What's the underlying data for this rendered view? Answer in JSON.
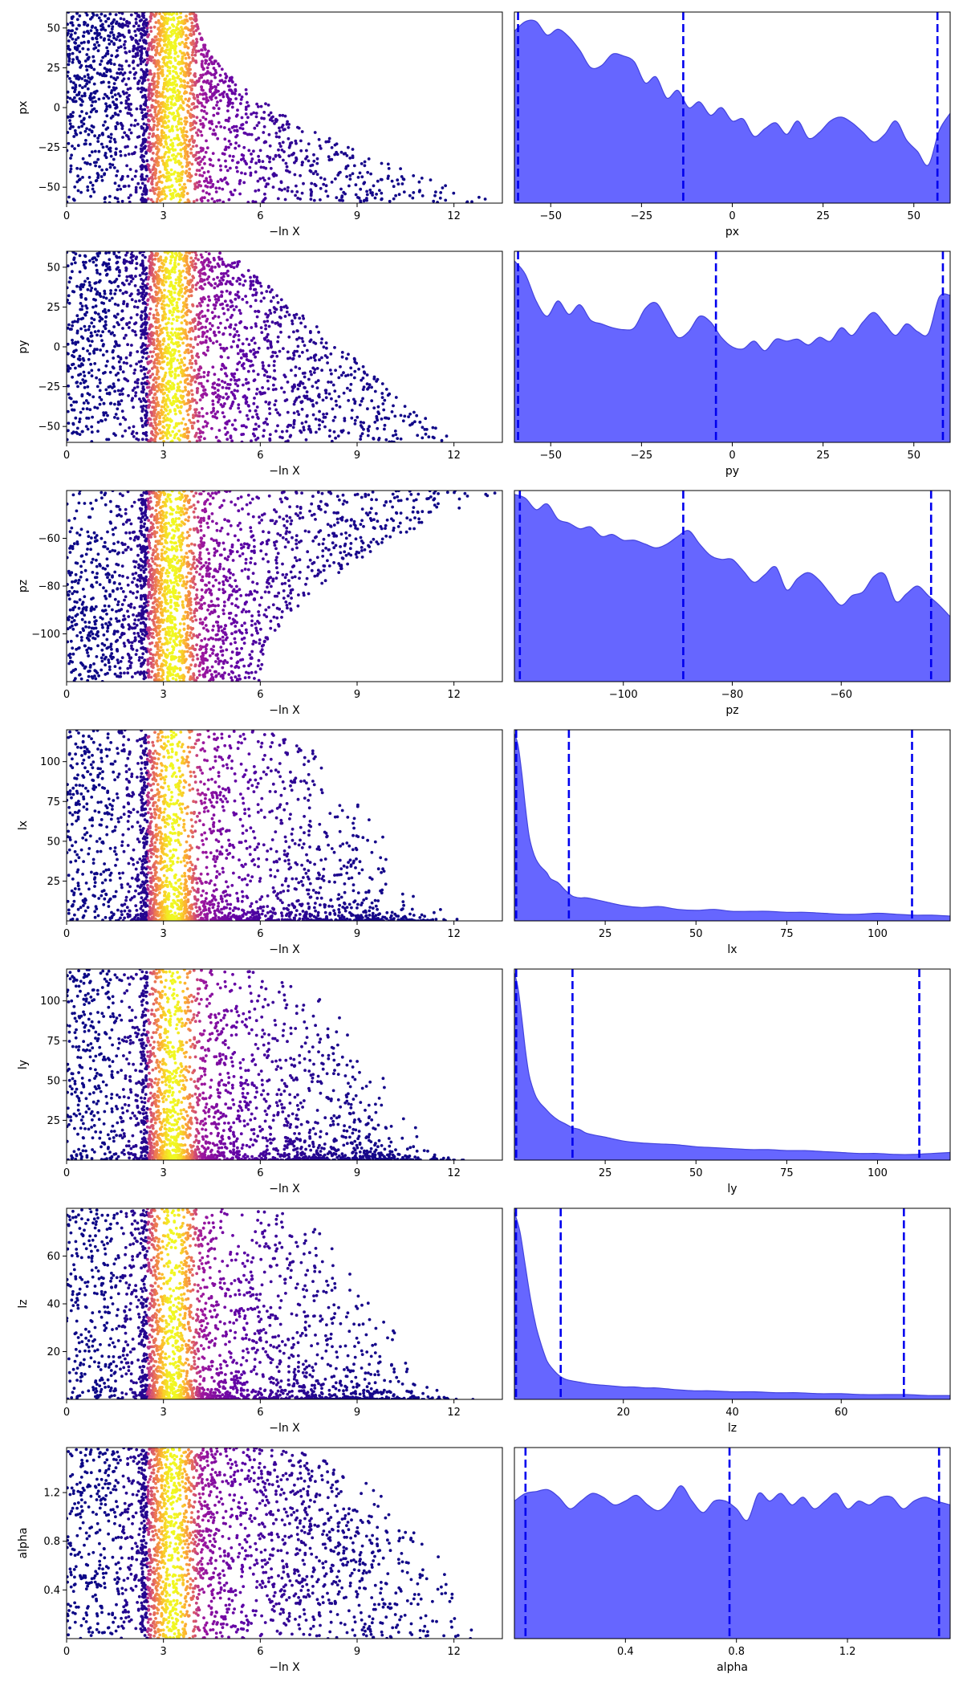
{
  "x_axis_label_left": "−ln X",
  "colors": {
    "kde_fill": "#6666ff",
    "kde_line": "#4444dd",
    "quantile_line": "#0000ee",
    "colormap": [
      "#0d0887",
      "#5c01a6",
      "#9c179e",
      "#cc4778",
      "#ed7953",
      "#fdb42f",
      "#f0f921"
    ]
  },
  "chart_data": [
    {
      "type": "scatter",
      "parameter": "px",
      "ylabel": "px",
      "xlim": [
        0,
        13.5
      ],
      "ylim": [
        -60,
        60
      ],
      "x_ticks": [
        0,
        3,
        6,
        9,
        12
      ],
      "y_ticks": [
        -50,
        -25,
        0,
        25,
        50
      ],
      "grid": false,
      "description_hint": "nested sampling points colored by posterior weight (plasma colormap)"
    },
    {
      "type": "area",
      "parameter": "px",
      "xlabel": "px",
      "xlim": [
        -60,
        60
      ],
      "x_ticks": [
        -50,
        -25,
        0,
        25,
        50
      ],
      "quantile_lines": [
        -59,
        -13.5,
        56.5
      ],
      "kde_x": [
        -60,
        -57,
        -54,
        -51,
        -48,
        -45,
        -42,
        -39,
        -36,
        -33,
        -30,
        -27,
        -24,
        -21,
        -18,
        -15,
        -12,
        -9,
        -6,
        -3,
        0,
        3,
        6,
        9,
        12,
        15,
        18,
        21,
        24,
        27,
        30,
        33,
        36,
        39,
        42,
        45,
        48,
        51,
        54,
        57,
        60
      ],
      "kde_y": [
        0.9,
        0.95,
        0.95,
        0.88,
        0.91,
        0.87,
        0.8,
        0.71,
        0.72,
        0.78,
        0.77,
        0.74,
        0.63,
        0.66,
        0.55,
        0.59,
        0.5,
        0.53,
        0.46,
        0.5,
        0.43,
        0.44,
        0.35,
        0.39,
        0.42,
        0.36,
        0.43,
        0.34,
        0.37,
        0.43,
        0.45,
        0.42,
        0.37,
        0.32,
        0.36,
        0.43,
        0.33,
        0.27,
        0.2,
        0.38,
        0.47
      ]
    },
    {
      "type": "scatter",
      "parameter": "py",
      "ylabel": "py",
      "xlim": [
        0,
        13.5
      ],
      "ylim": [
        -60,
        60
      ],
      "x_ticks": [
        0,
        3,
        6,
        9,
        12
      ],
      "y_ticks": [
        -50,
        -25,
        0,
        25,
        50
      ],
      "grid": false
    },
    {
      "type": "area",
      "parameter": "py",
      "xlabel": "py",
      "xlim": [
        -60,
        60
      ],
      "x_ticks": [
        -50,
        -25,
        0,
        25,
        50
      ],
      "quantile_lines": [
        -59,
        -4.5,
        58
      ],
      "kde_x": [
        -60,
        -57,
        -54,
        -51,
        -48,
        -45,
        -42,
        -39,
        -36,
        -33,
        -30,
        -27,
        -24,
        -21,
        -18,
        -15,
        -12,
        -9,
        -6,
        -3,
        0,
        3,
        6,
        9,
        12,
        15,
        18,
        21,
        24,
        27,
        30,
        33,
        36,
        39,
        42,
        45,
        48,
        51,
        54,
        57,
        60
      ],
      "kde_y": [
        0.95,
        0.88,
        0.74,
        0.66,
        0.74,
        0.67,
        0.72,
        0.64,
        0.62,
        0.6,
        0.59,
        0.6,
        0.7,
        0.73,
        0.64,
        0.55,
        0.58,
        0.66,
        0.63,
        0.55,
        0.5,
        0.49,
        0.53,
        0.48,
        0.54,
        0.53,
        0.54,
        0.51,
        0.55,
        0.53,
        0.6,
        0.56,
        0.63,
        0.68,
        0.62,
        0.56,
        0.62,
        0.58,
        0.57,
        0.76,
        0.77
      ]
    },
    {
      "type": "scatter",
      "parameter": "pz",
      "ylabel": "pz",
      "xlim": [
        0,
        13.5
      ],
      "ylim": [
        -120,
        -40
      ],
      "x_ticks": [
        0,
        3,
        6,
        9,
        12
      ],
      "y_ticks": [
        -100,
        -80,
        -60
      ],
      "grid": false
    },
    {
      "type": "area",
      "parameter": "pz",
      "xlabel": "pz",
      "xlim": [
        -120,
        -40
      ],
      "x_ticks": [
        -100,
        -80,
        -60
      ],
      "quantile_lines": [
        -119,
        -89,
        -43.5
      ],
      "kde_x": [
        -120,
        -118,
        -116,
        -114,
        -112,
        -110,
        -108,
        -106,
        -104,
        -102,
        -100,
        -98,
        -96,
        -94,
        -92,
        -90,
        -88,
        -86,
        -84,
        -82,
        -80,
        -78,
        -76,
        -74,
        -72,
        -70,
        -68,
        -66,
        -64,
        -62,
        -60,
        -58,
        -56,
        -54,
        -52,
        -50,
        -48,
        -46,
        -44,
        -42,
        -40
      ],
      "kde_y": [
        0.98,
        0.96,
        0.9,
        0.93,
        0.85,
        0.83,
        0.8,
        0.81,
        0.76,
        0.77,
        0.74,
        0.74,
        0.72,
        0.7,
        0.72,
        0.76,
        0.79,
        0.72,
        0.66,
        0.64,
        0.64,
        0.58,
        0.52,
        0.56,
        0.6,
        0.48,
        0.54,
        0.57,
        0.53,
        0.46,
        0.4,
        0.45,
        0.47,
        0.55,
        0.56,
        0.42,
        0.46,
        0.5,
        0.45,
        0.4,
        0.34
      ]
    },
    {
      "type": "scatter",
      "parameter": "lx",
      "ylabel": "lx",
      "xlim": [
        0,
        13.5
      ],
      "ylim": [
        0,
        120
      ],
      "x_ticks": [
        0,
        3,
        6,
        9,
        12
      ],
      "y_ticks": [
        25,
        50,
        75,
        100
      ],
      "grid": false
    },
    {
      "type": "area",
      "parameter": "lx",
      "xlabel": "lx",
      "xlim": [
        0,
        120
      ],
      "x_ticks": [
        25,
        50,
        75,
        100
      ],
      "quantile_lines": [
        0.5,
        15,
        109.5
      ],
      "kde_x": [
        0,
        1,
        2,
        3,
        4,
        5,
        6,
        7,
        8,
        9,
        10,
        12,
        14,
        16,
        18,
        20,
        25,
        30,
        35,
        40,
        45,
        50,
        55,
        60,
        65,
        70,
        75,
        80,
        85,
        90,
        95,
        100,
        105,
        110,
        115,
        120
      ],
      "kde_y": [
        0.98,
        0.92,
        0.78,
        0.6,
        0.45,
        0.37,
        0.32,
        0.29,
        0.27,
        0.25,
        0.22,
        0.2,
        0.16,
        0.13,
        0.12,
        0.12,
        0.1,
        0.08,
        0.07,
        0.075,
        0.06,
        0.055,
        0.06,
        0.05,
        0.05,
        0.05,
        0.045,
        0.045,
        0.04,
        0.035,
        0.035,
        0.04,
        0.035,
        0.03,
        0.03,
        0.025
      ]
    },
    {
      "type": "scatter",
      "parameter": "ly",
      "ylabel": "ly",
      "xlim": [
        0,
        13.5
      ],
      "ylim": [
        0,
        120
      ],
      "x_ticks": [
        0,
        3,
        6,
        9,
        12
      ],
      "y_ticks": [
        25,
        50,
        75,
        100
      ],
      "grid": false
    },
    {
      "type": "area",
      "parameter": "ly",
      "xlabel": "ly",
      "xlim": [
        0,
        120
      ],
      "x_ticks": [
        25,
        50,
        75,
        100
      ],
      "quantile_lines": [
        0.5,
        16,
        111.5
      ],
      "kde_x": [
        0,
        1,
        2,
        3,
        4,
        5,
        6,
        7,
        8,
        9,
        10,
        12,
        14,
        16,
        18,
        20,
        25,
        30,
        35,
        40,
        45,
        50,
        55,
        60,
        65,
        70,
        75,
        80,
        85,
        90,
        95,
        100,
        105,
        110,
        115,
        120
      ],
      "kde_y": [
        0.98,
        0.9,
        0.75,
        0.58,
        0.45,
        0.38,
        0.33,
        0.3,
        0.28,
        0.26,
        0.24,
        0.21,
        0.19,
        0.17,
        0.16,
        0.14,
        0.12,
        0.1,
        0.09,
        0.085,
        0.08,
        0.07,
        0.065,
        0.06,
        0.055,
        0.055,
        0.05,
        0.05,
        0.045,
        0.04,
        0.035,
        0.035,
        0.03,
        0.03,
        0.035,
        0.04
      ]
    },
    {
      "type": "scatter",
      "parameter": "lz",
      "ylabel": "lz",
      "xlim": [
        0,
        13.5
      ],
      "ylim": [
        0,
        80
      ],
      "x_ticks": [
        0,
        3,
        6,
        9,
        12
      ],
      "y_ticks": [
        20,
        40,
        60
      ],
      "grid": false
    },
    {
      "type": "area",
      "parameter": "lz",
      "xlabel": "lz",
      "xlim": [
        0,
        80
      ],
      "x_ticks": [
        20,
        40,
        60
      ],
      "quantile_lines": [
        0.3,
        8.5,
        71.5
      ],
      "kde_x": [
        0,
        1,
        2,
        3,
        4,
        5,
        6,
        7,
        8,
        9,
        10,
        12,
        14,
        16,
        18,
        20,
        22,
        24,
        26,
        28,
        30,
        33,
        36,
        40,
        44,
        48,
        52,
        56,
        60,
        64,
        68,
        72,
        76,
        80
      ],
      "kde_y": [
        0.98,
        0.88,
        0.7,
        0.52,
        0.38,
        0.28,
        0.2,
        0.16,
        0.13,
        0.11,
        0.1,
        0.09,
        0.08,
        0.075,
        0.07,
        0.065,
        0.065,
        0.06,
        0.06,
        0.055,
        0.05,
        0.045,
        0.045,
        0.04,
        0.04,
        0.035,
        0.035,
        0.03,
        0.03,
        0.025,
        0.025,
        0.025,
        0.02,
        0.02
      ]
    },
    {
      "type": "scatter",
      "parameter": "alpha",
      "ylabel": "alpha",
      "xlim": [
        0,
        13.5
      ],
      "ylim": [
        0,
        1.57
      ],
      "x_ticks": [
        0,
        3,
        6,
        9,
        12
      ],
      "y_ticks": [
        0.4,
        0.8,
        1.2
      ],
      "y_tick_labels": [
        "0.4",
        "0.8",
        "1.2"
      ],
      "grid": false
    },
    {
      "type": "area",
      "parameter": "alpha",
      "xlabel": "alpha",
      "xlim": [
        0,
        1.57
      ],
      "x_ticks": [
        0.4,
        0.8,
        1.2
      ],
      "x_tick_labels": [
        "0.4",
        "0.8",
        "1.2"
      ],
      "quantile_lines": [
        0.04,
        0.775,
        1.53
      ],
      "kde_x": [
        0,
        0.04,
        0.08,
        0.12,
        0.16,
        0.2,
        0.24,
        0.28,
        0.32,
        0.36,
        0.4,
        0.44,
        0.48,
        0.52,
        0.56,
        0.6,
        0.64,
        0.68,
        0.72,
        0.76,
        0.8,
        0.84,
        0.88,
        0.92,
        0.96,
        1.0,
        1.04,
        1.08,
        1.12,
        1.16,
        1.2,
        1.24,
        1.28,
        1.32,
        1.36,
        1.4,
        1.44,
        1.48,
        1.52,
        1.57
      ],
      "kde_y": [
        0.72,
        0.76,
        0.77,
        0.78,
        0.74,
        0.68,
        0.72,
        0.76,
        0.74,
        0.7,
        0.72,
        0.75,
        0.7,
        0.67,
        0.72,
        0.8,
        0.72,
        0.66,
        0.72,
        0.72,
        0.68,
        0.62,
        0.76,
        0.72,
        0.76,
        0.7,
        0.74,
        0.68,
        0.72,
        0.76,
        0.68,
        0.72,
        0.7,
        0.74,
        0.74,
        0.68,
        0.72,
        0.74,
        0.72,
        0.7
      ]
    }
  ]
}
